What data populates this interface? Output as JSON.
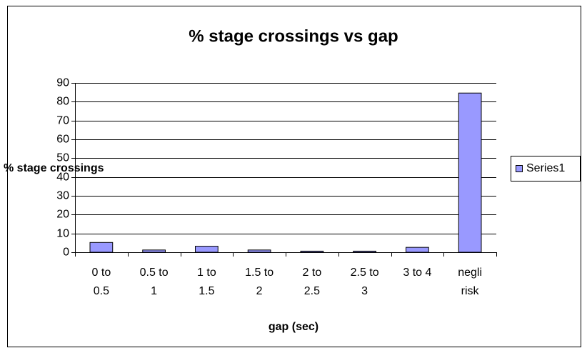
{
  "chart_data": {
    "type": "bar",
    "title": "% stage crossings vs gap",
    "x_label": "gap (sec)",
    "y_label": "% stage crossings",
    "categories": [
      "0 to 0.5",
      "0.5 to 1",
      "1 to 1.5",
      "1.5 to 2",
      "2 to 2.5",
      "2.5 to 3",
      "3 to 4",
      "negli risk"
    ],
    "series": [
      {
        "name": "Series1",
        "color": "#9999ff",
        "values": [
          5.2,
          1.2,
          3.2,
          1.2,
          0.6,
          0.6,
          2.6,
          84.6
        ]
      }
    ],
    "ylim": [
      0,
      90
    ],
    "yticks": [
      0,
      10,
      20,
      30,
      40,
      50,
      60,
      70,
      80,
      90
    ],
    "grid": true,
    "legend": "right"
  }
}
